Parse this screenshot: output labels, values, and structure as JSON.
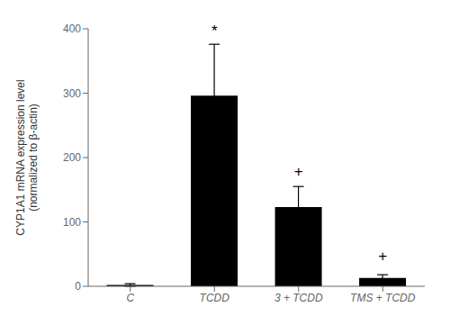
{
  "chart_data": {
    "type": "bar",
    "categories": [
      "C",
      "TCDD",
      "3 + TCDD",
      "TMS + TCDD"
    ],
    "values": [
      2,
      296,
      123,
      13
    ],
    "errors": [
      2,
      80,
      32,
      5
    ],
    "color": "#000000",
    "ylabel": "CYP1A1 mRNA expression level\n(normalized to β-actin)",
    "ylim": [
      0,
      400
    ],
    "yticks": [
      0,
      100,
      200,
      300,
      400
    ],
    "annotations": [
      {
        "text": "*",
        "x": "TCDD",
        "y": 382
      },
      {
        "text": "+",
        "x": "3 + TCDD",
        "y": 163
      },
      {
        "text": "+",
        "x": "TMS + TCDD",
        "y": 32
      }
    ]
  }
}
